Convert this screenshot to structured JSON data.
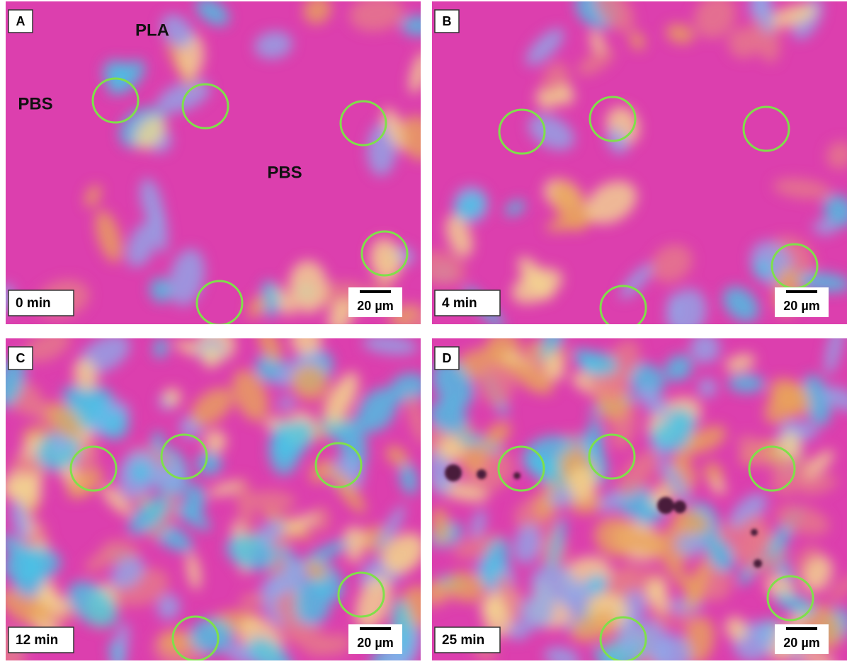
{
  "panels": [
    {
      "letter": "A",
      "time": "0 min",
      "scale": "20 µm",
      "labels": [
        "PLA",
        "PBS",
        "PBS"
      ]
    },
    {
      "letter": "B",
      "time": "4 min",
      "scale": "20 µm"
    },
    {
      "letter": "C",
      "time": "12 min",
      "scale": "20 µm"
    },
    {
      "letter": "D",
      "time": "25 min",
      "scale": "20 µm"
    }
  ]
}
